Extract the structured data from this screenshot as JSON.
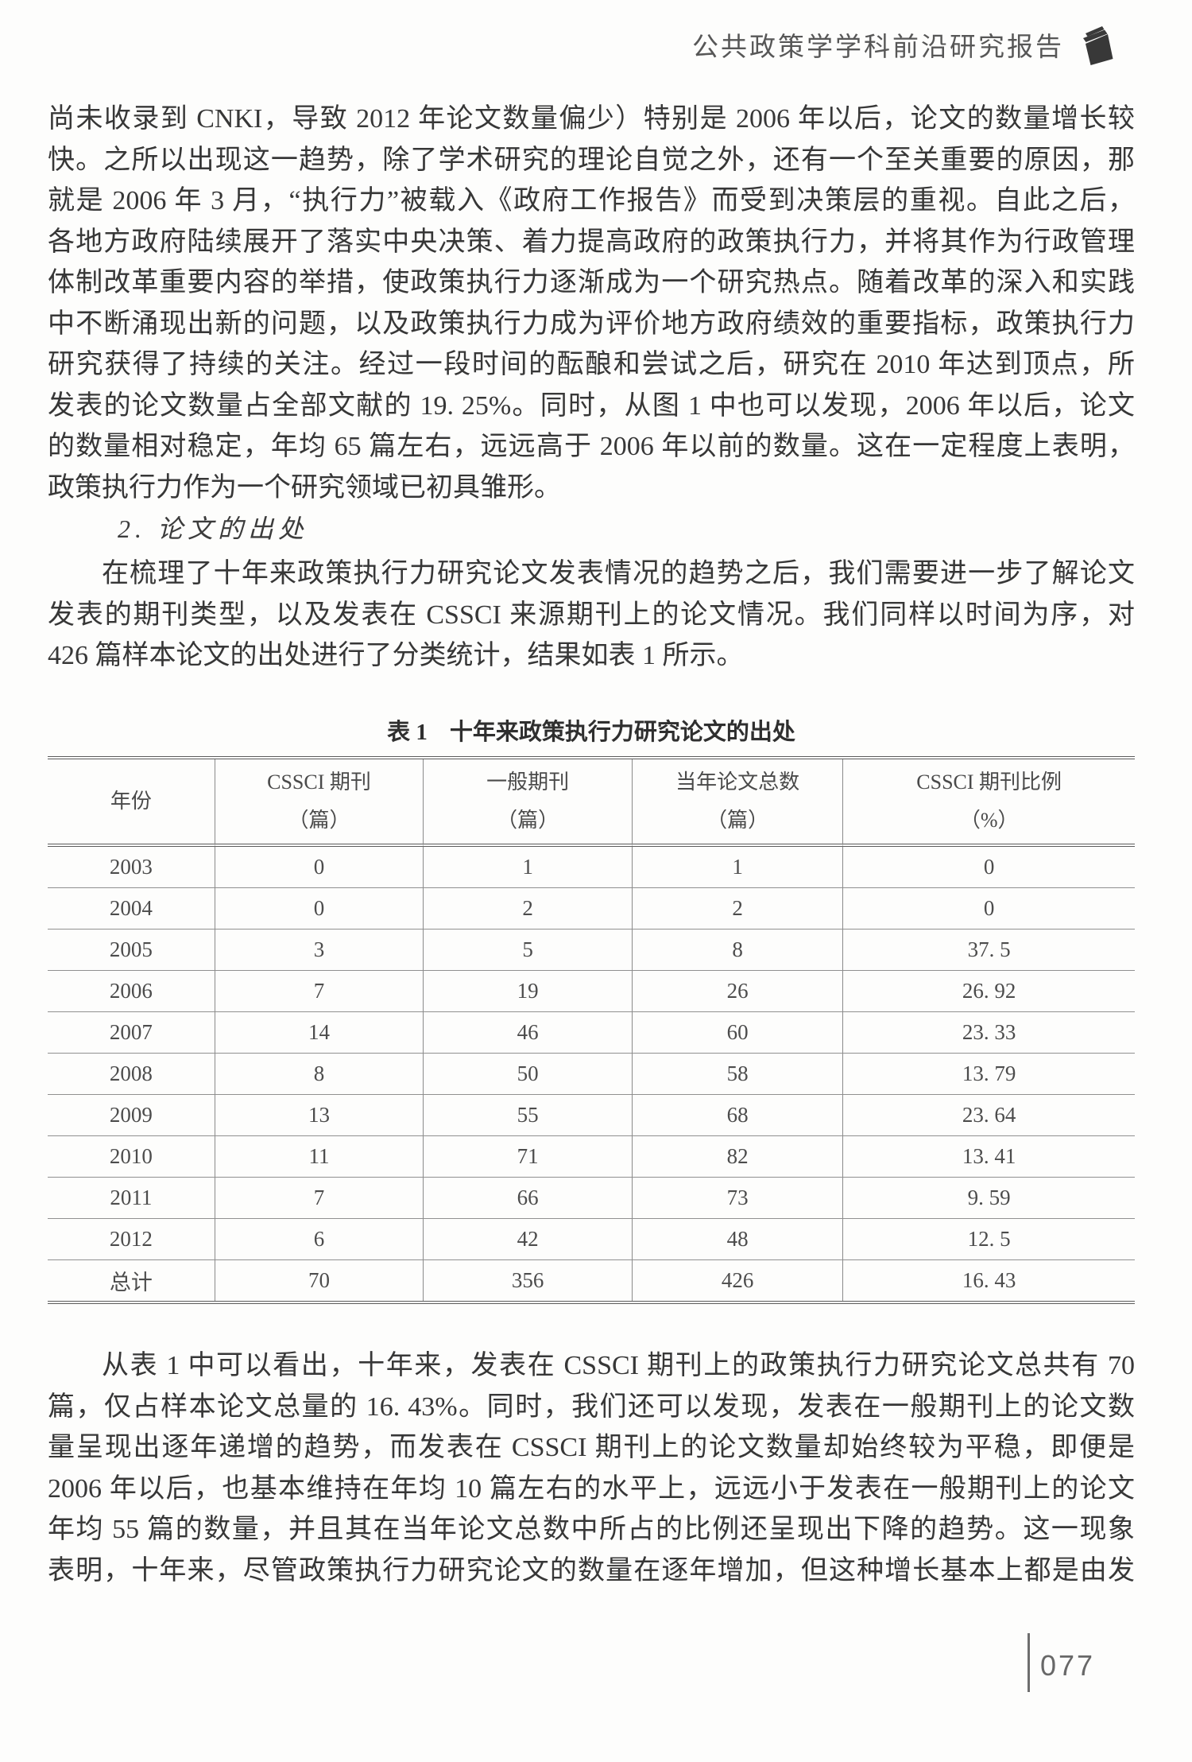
{
  "header": {
    "title": "公共政策学学科前沿研究报告",
    "icon": "books-icon",
    "title_color": "#575757"
  },
  "paragraph1": {
    "lines": [
      "尚未收录到 CNKI，导致 2012 年论文数量偏少）特别是 2006 年以后，论文的数量增长较",
      "快。之所以出现这一趋势，除了学术研究的理论自觉之外，还有一个至关重要的原因，那",
      "就是 2006 年 3 月，“执行力”被载入《政府工作报告》而受到决策层的重视。自此之后，",
      "各地方政府陆续展开了落实中央决策、着力提高政府的政策执行力，并将其作为行政管理",
      "体制改革重要内容的举措，使政策执行力逐渐成为一个研究热点。随着改革的深入和实践",
      "中不断涌现出新的问题，以及政策执行力成为评价地方政府绩效的重要指标，政策执行力",
      "研究获得了持续的关注。经过一段时间的酝酿和尝试之后，研究在 2010 年达到顶点，所",
      "发表的论文数量占全部文献的 19. 25%。同时，从图 1 中也可以发现，2006 年以后，论文",
      "的数量相对稳定，年均 65 篇左右，远远高于 2006 年以前的数量。这在一定程度上表明，",
      "政策执行力作为一个研究领域已初具雏形。"
    ]
  },
  "section_heading": "2. 论文的出处",
  "paragraph2": {
    "lines": [
      "在梳理了十年来政策执行力研究论文发表情况的趋势之后，我们需要进一步了解论文",
      "发表的期刊类型，以及发表在 CSSCI 来源期刊上的论文情况。我们同样以时间为序，对",
      "426 篇样本论文的出处进行了分类统计，结果如表 1 所示。"
    ]
  },
  "table": {
    "caption_label": "表 1",
    "caption_title": "十年来政策执行力研究论文的出处",
    "columns": [
      {
        "line1": "年份",
        "line2": ""
      },
      {
        "line1": "CSSCI 期刊",
        "line2": "（篇）"
      },
      {
        "line1": "一般期刊",
        "line2": "（篇）"
      },
      {
        "line1": "当年论文总数",
        "line2": "（篇）"
      },
      {
        "line1": "CSSCI 期刊比例",
        "line2": "（%）"
      }
    ],
    "col_widths": [
      "15.4%",
      "19.2%",
      "19.2%",
      "19.4%",
      "26.8%"
    ],
    "rows": [
      [
        "2003",
        "0",
        "1",
        "1",
        "0"
      ],
      [
        "2004",
        "0",
        "2",
        "2",
        "0"
      ],
      [
        "2005",
        "3",
        "5",
        "8",
        "37. 5"
      ],
      [
        "2006",
        "7",
        "19",
        "26",
        "26. 92"
      ],
      [
        "2007",
        "14",
        "46",
        "60",
        "23. 33"
      ],
      [
        "2008",
        "8",
        "50",
        "58",
        "13. 79"
      ],
      [
        "2009",
        "13",
        "55",
        "68",
        "23. 64"
      ],
      [
        "2010",
        "11",
        "71",
        "82",
        "13. 41"
      ],
      [
        "2011",
        "7",
        "66",
        "73",
        "9. 59"
      ],
      [
        "2012",
        "6",
        "42",
        "48",
        "12. 5"
      ],
      [
        "总计",
        "70",
        "356",
        "426",
        "16. 43"
      ]
    ]
  },
  "paragraph3": {
    "lines": [
      "从表 1 中可以看出，十年来，发表在 CSSCI 期刊上的政策执行力研究论文总共有 70",
      "篇，仅占样本论文总量的 16. 43%。同时，我们还可以发现，发表在一般期刊上的论文数",
      "量呈现出逐年递增的趋势，而发表在 CSSCI 期刊上的论文数量却始终较为平稳，即便是",
      "2006 年以后，也基本维持在年均 10 篇左右的水平上，远远小于发表在一般期刊上的论文",
      "年均 55 篇的数量，并且其在当年论文总数中所占的比例还呈现出下降的趋势。这一现象",
      "表明，十年来，尽管政策执行力研究论文的数量在逐年增加，但这种增长基本上都是由发"
    ]
  },
  "footer": {
    "page_number": "077"
  }
}
